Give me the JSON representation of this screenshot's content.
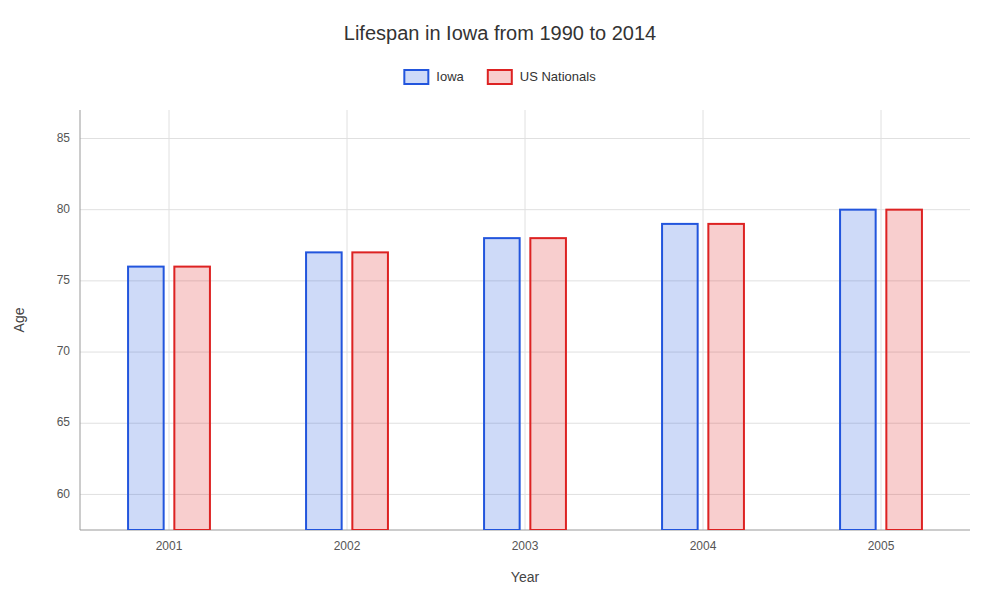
{
  "chart_data": {
    "type": "bar",
    "title": "Lifespan in Iowa from 1990 to 2014",
    "xlabel": "Year",
    "ylabel": "Age",
    "categories": [
      "2001",
      "2002",
      "2003",
      "2004",
      "2005"
    ],
    "series": [
      {
        "name": "Iowa",
        "color": "#2255dd",
        "values": [
          76,
          77,
          78,
          79,
          80
        ]
      },
      {
        "name": "US Nationals",
        "color": "#dd2222",
        "values": [
          76,
          77,
          78,
          79,
          80
        ]
      }
    ],
    "ylim": [
      57.5,
      87
    ],
    "yticks": [
      60,
      65,
      70,
      75,
      80,
      85
    ],
    "grid": true,
    "legend": "top"
  }
}
